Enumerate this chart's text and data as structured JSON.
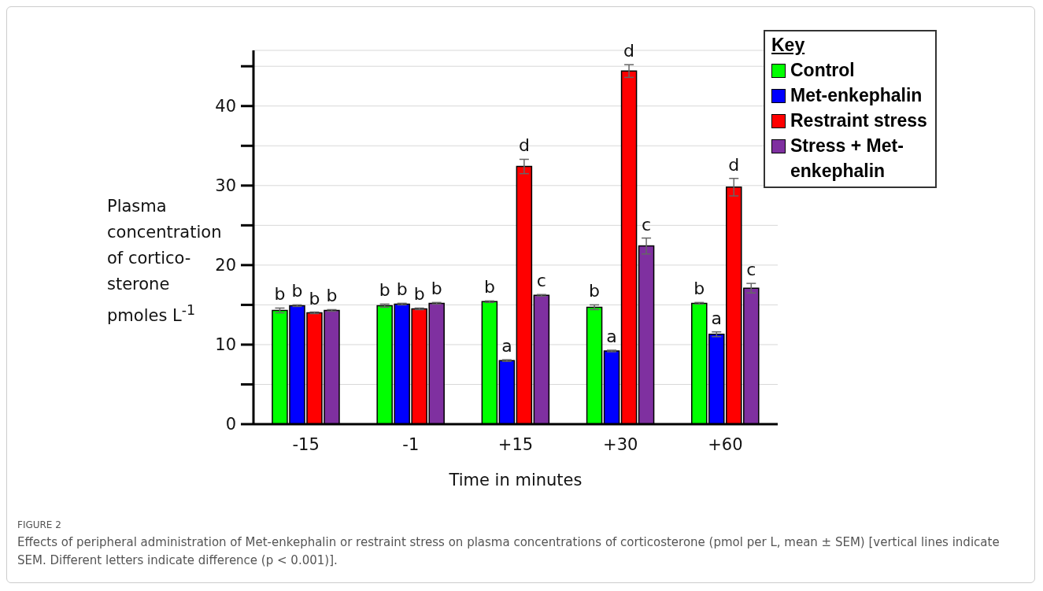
{
  "chart_data": {
    "type": "bar",
    "ylabel": "Plasma\nconcentration\nof cortico-\nsterone\npmoles L$^{-1}$",
    "xlabel": "Time in minutes",
    "legend_title": "Key",
    "legend": "top right",
    "grid": "y",
    "categories": [
      "-15",
      "-1",
      "+15",
      "+30",
      "+60"
    ],
    "ylim": [
      0,
      47
    ],
    "yticks": [
      0,
      {
        "value": 5,
        "label": null
      },
      10,
      {
        "value": 15,
        "label": null
      },
      20,
      {
        "value": 25,
        "label": null
      },
      30,
      {
        "value": 35,
        "label": null
      },
      40,
      {
        "value": 45,
        "label": null
      }
    ],
    "series": [
      {
        "name": "Control",
        "color": "#00ff00",
        "values": [
          14.3,
          14.9,
          15.4,
          14.7,
          15.2
        ],
        "errors": [
          0.3,
          0.2,
          0.1,
          0.3,
          0.1
        ],
        "value_labels": [
          "b",
          "b",
          "b",
          "b",
          "b"
        ]
      },
      {
        "name": "Met-enkephalin",
        "color": "#0000ff",
        "values": [
          14.9,
          15.1,
          8.0,
          9.2,
          11.3
        ],
        "errors": [
          0.1,
          0.1,
          0.1,
          0.1,
          0.3
        ],
        "value_labels": [
          "b",
          "b",
          "a",
          "a",
          "a"
        ]
      },
      {
        "name": "Restraint stress",
        "color": "#ff0000",
        "values": [
          14.0,
          14.5,
          32.4,
          44.4,
          29.8
        ],
        "errors": [
          0.1,
          0.1,
          0.9,
          0.8,
          1.1
        ],
        "value_labels": [
          "b",
          "b",
          "d",
          "d",
          "d"
        ]
      },
      {
        "name": "Stress + Met-enkephalin",
        "color": "#7f30a0",
        "values": [
          14.3,
          15.2,
          16.2,
          22.4,
          17.1
        ],
        "errors": [
          0.1,
          0.1,
          0.1,
          1.0,
          0.6
        ],
        "value_labels": [
          "b",
          "b",
          "c",
          "c",
          "c"
        ]
      }
    ],
    "annotations": [
      "FIGURE 2",
      "Effects of peripheral administration of Met-enkephalin or restraint stress on plasma concentrations of corticosterone (pmol per L, mean ± SEM) [vertical lines indicate SEM. Different letters indicate difference (p <  0.001)]."
    ]
  }
}
